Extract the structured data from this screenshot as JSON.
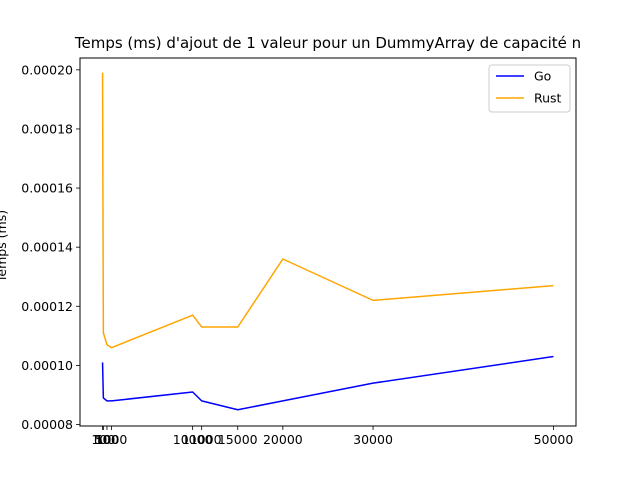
{
  "chart_data": {
    "type": "line",
    "title": "Temps (ms) d'ajout de 1 valeur pour un DummyArray de capacité n",
    "xlabel": "",
    "ylabel": "Temps (ms)",
    "x": [
      10,
      100,
      500,
      1000,
      10000,
      11000,
      15000,
      20000,
      30000,
      50000
    ],
    "xticks": [
      10,
      100,
      500,
      1000,
      10000,
      11000,
      15000,
      20000,
      30000,
      50000
    ],
    "yticks": [
      8e-05,
      0.0001,
      0.00012,
      0.00014,
      0.00016,
      0.00018,
      0.0002
    ],
    "ytick_labels": [
      "0.00008",
      "0.00010",
      "0.00012",
      "0.00014",
      "0.00016",
      "0.00018",
      "0.00020"
    ],
    "xlim": [
      -2490,
      52500
    ],
    "ylim": [
      7.95e-05,
      0.000204
    ],
    "grid": false,
    "legend_position": "top-right",
    "series": [
      {
        "name": "Go",
        "color": "#0000ff",
        "values": [
          0.000101,
          8.9e-05,
          8.8e-05,
          8.8e-05,
          9.1e-05,
          8.8e-05,
          8.5e-05,
          8.8e-05,
          9.4e-05,
          0.000103
        ]
      },
      {
        "name": "Rust",
        "color": "#ffa500",
        "values": [
          0.000199,
          0.000111,
          0.000107,
          0.000106,
          0.000117,
          0.000113,
          0.000113,
          0.000136,
          0.000122,
          0.000127
        ]
      }
    ]
  }
}
